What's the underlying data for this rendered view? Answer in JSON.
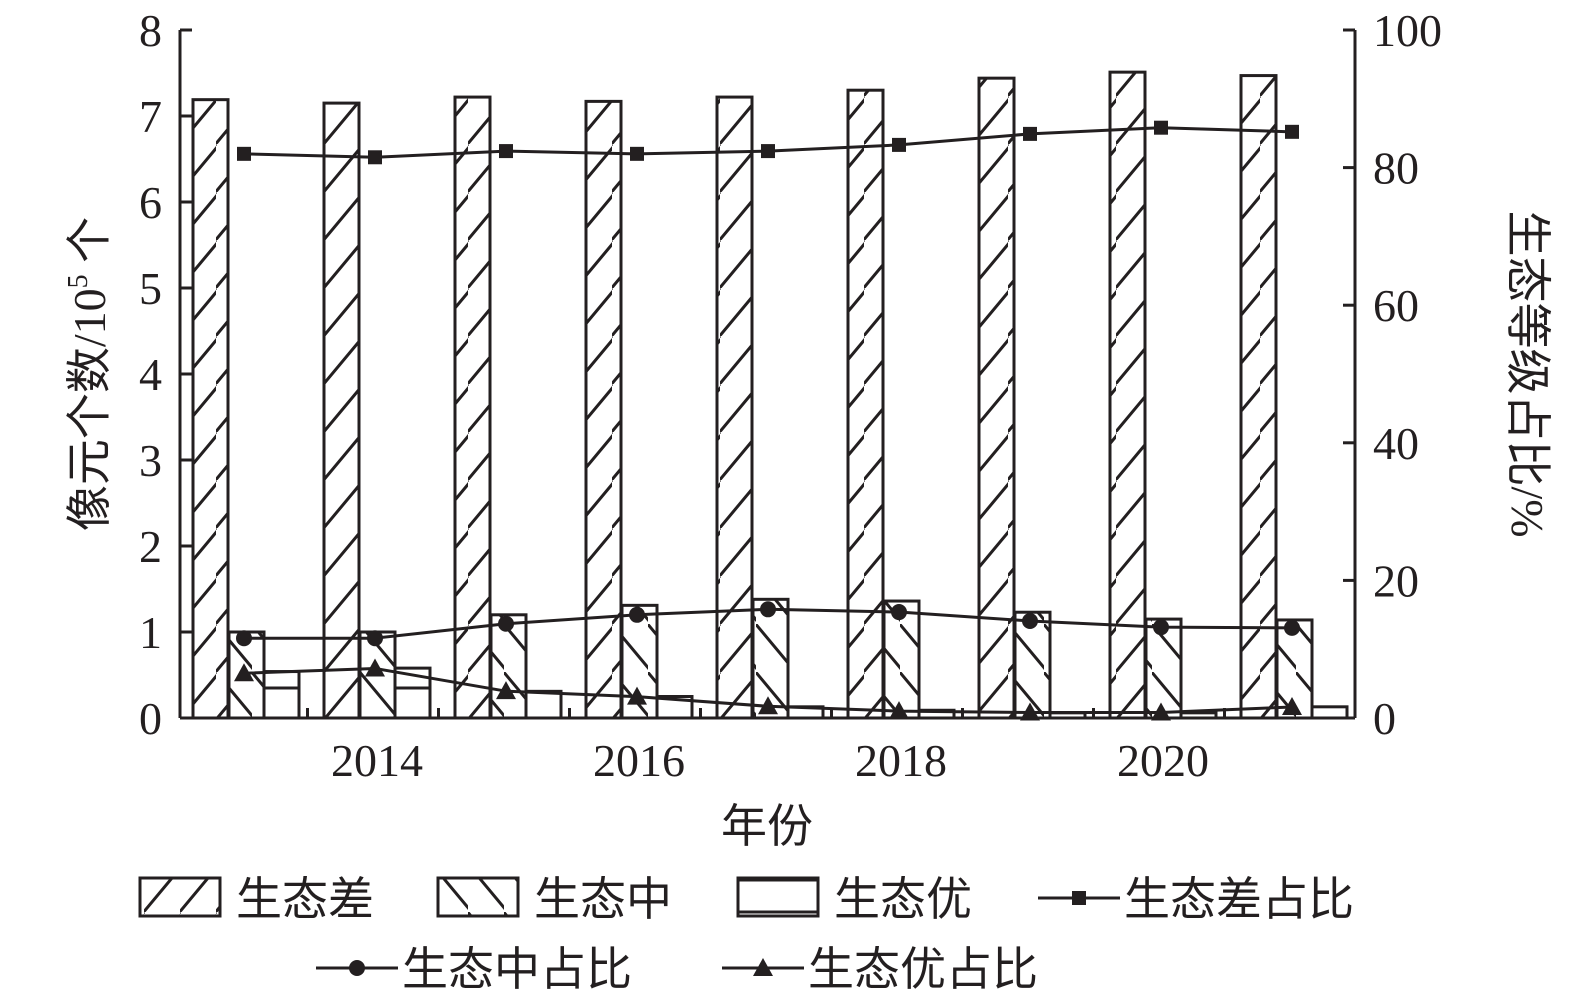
{
  "chart_data": {
    "type": "bar",
    "xlabel": "年份",
    "ylabel": "像元个数/10",
    "ylabel_sup": "5",
    "ylabel_unit": " 个",
    "y2label": "生态等级占比/%",
    "ylim": [
      0,
      8
    ],
    "y2lim": [
      0,
      100
    ],
    "yticks": [
      "0",
      "1",
      "2",
      "3",
      "4",
      "5",
      "6",
      "7",
      "8"
    ],
    "y2ticks": [
      "0",
      "20",
      "40",
      "60",
      "80",
      "100"
    ],
    "xticks": [
      "2014",
      "2016",
      "2018",
      "2020"
    ],
    "grid": false,
    "legend_position": "bottom",
    "categories": [
      2013,
      2014,
      2015,
      2016,
      2017,
      2018,
      2019,
      2020,
      2021
    ],
    "series": [
      {
        "name": "生态差",
        "kind": "bar",
        "pattern": "forward-hatch",
        "axis": "left",
        "values": [
          7.19,
          7.15,
          7.22,
          7.17,
          7.22,
          7.3,
          7.44,
          7.51,
          7.47
        ]
      },
      {
        "name": "生态中",
        "kind": "bar",
        "pattern": "back-hatch",
        "axis": "left",
        "values": [
          1.0,
          1.0,
          1.2,
          1.31,
          1.38,
          1.36,
          1.23,
          1.15,
          1.14
        ]
      },
      {
        "name": "生态优",
        "kind": "bar",
        "pattern": "horizontal-lines",
        "axis": "left",
        "values": [
          0.54,
          0.58,
          0.31,
          0.25,
          0.13,
          0.09,
          0.06,
          0.06,
          0.13
        ]
      },
      {
        "name": "生态差占比",
        "kind": "line",
        "marker": "square",
        "axis": "right",
        "values": [
          82.0,
          81.5,
          82.4,
          82.0,
          82.4,
          83.3,
          84.9,
          85.8,
          85.2
        ]
      },
      {
        "name": "生态中占比",
        "kind": "line",
        "marker": "circle",
        "axis": "right",
        "values": [
          11.6,
          11.6,
          13.7,
          15.0,
          15.8,
          15.4,
          14.1,
          13.2,
          13.1
        ]
      },
      {
        "name": "生态优占比",
        "kind": "line",
        "marker": "triangle",
        "axis": "right",
        "values": [
          6.5,
          7.2,
          3.9,
          3.1,
          1.7,
          1.0,
          0.8,
          0.8,
          1.6
        ]
      }
    ],
    "colors": {
      "ink": "#231f20",
      "background": "#ffffff"
    }
  }
}
